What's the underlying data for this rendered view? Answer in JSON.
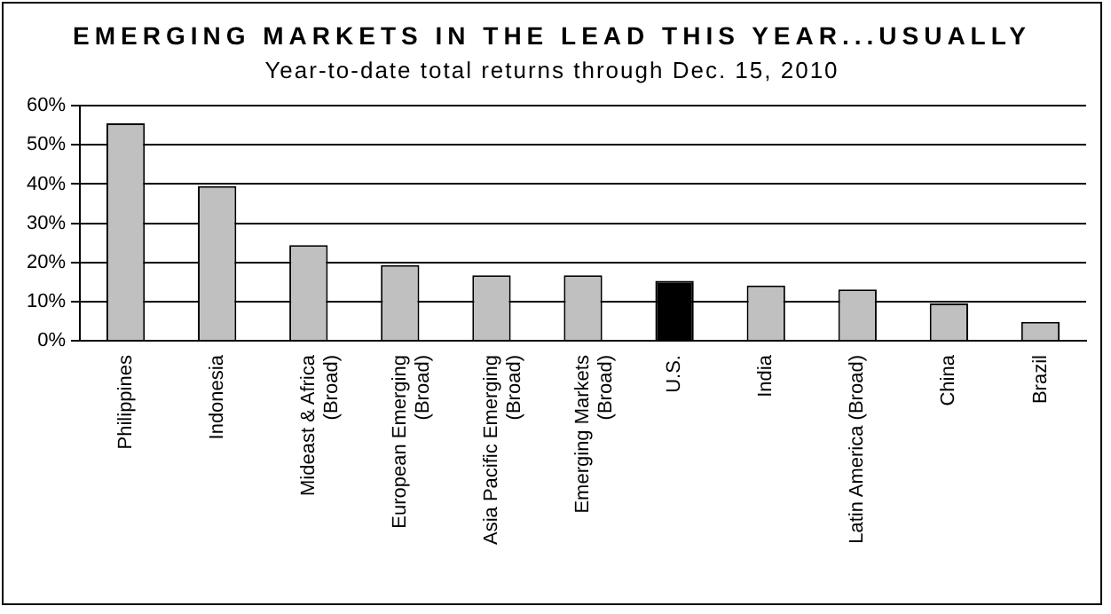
{
  "chart_data": {
    "type": "bar",
    "title": "EMERGING MARKETS IN THE LEAD THIS YEAR...USUALLY",
    "subtitle": "Year-to-date total returns through Dec. 15, 2010",
    "categories": [
      "Philippines",
      "Indonesia",
      "Mideast & Africa (Broad)",
      "European Emerging (Broad)",
      "Asia Pacific Emerging (Broad)",
      "Emerging Markets (Broad)",
      "U.S.",
      "India",
      "Latin America (Broad)",
      "China",
      "Brazil"
    ],
    "values": [
      55.5,
      39.5,
      24.4,
      19.3,
      16.7,
      16.7,
      15.3,
      14.1,
      13.1,
      9.5,
      4.8
    ],
    "colors": [
      "#c0c0c0",
      "#c0c0c0",
      "#c0c0c0",
      "#c0c0c0",
      "#c0c0c0",
      "#c0c0c0",
      "#000000",
      "#c0c0c0",
      "#c0c0c0",
      "#c0c0c0",
      "#c0c0c0"
    ],
    "ylim": [
      0,
      60
    ],
    "yticks": [
      {
        "value": 0,
        "label": "0%"
      },
      {
        "value": 10,
        "label": "10%"
      },
      {
        "value": 20,
        "label": "20%"
      },
      {
        "value": 30,
        "label": "30%"
      },
      {
        "value": 40,
        "label": "40%"
      },
      {
        "value": 50,
        "label": "50%"
      },
      {
        "value": 60,
        "label": "60%"
      }
    ],
    "grid": "y",
    "legend": false
  }
}
